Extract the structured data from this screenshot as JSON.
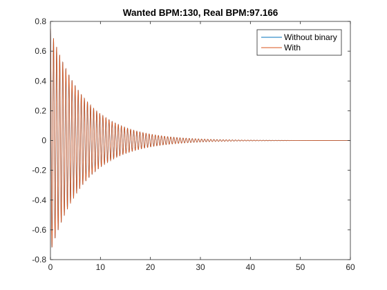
{
  "chart_data": {
    "type": "line",
    "title": "Wanted BPM:130, Real BPM:97.166",
    "xlabel": "",
    "ylabel": "",
    "xlim": [
      0,
      60
    ],
    "ylim": [
      -0.8,
      0.8
    ],
    "xticks": [
      0,
      10,
      20,
      30,
      40,
      50,
      60
    ],
    "yticks": [
      -0.8,
      -0.6,
      -0.4,
      -0.2,
      0,
      0.2,
      0.4,
      0.6,
      0.8
    ],
    "grid": false,
    "legend_position": "top-right",
    "series": [
      {
        "name": "Without binary",
        "color": "#0072BD",
        "signal": {
          "kind": "damped-oscillation",
          "amplitude": 0.75,
          "decay_time": 7,
          "period": 0.617,
          "x_start": 0,
          "x_end": 60
        }
      },
      {
        "name": "With",
        "color": "#D95319",
        "signal": {
          "kind": "damped-oscillation",
          "amplitude": 0.75,
          "decay_time": 7,
          "period": 0.617,
          "x_start": 0,
          "x_end": 60
        }
      }
    ]
  }
}
